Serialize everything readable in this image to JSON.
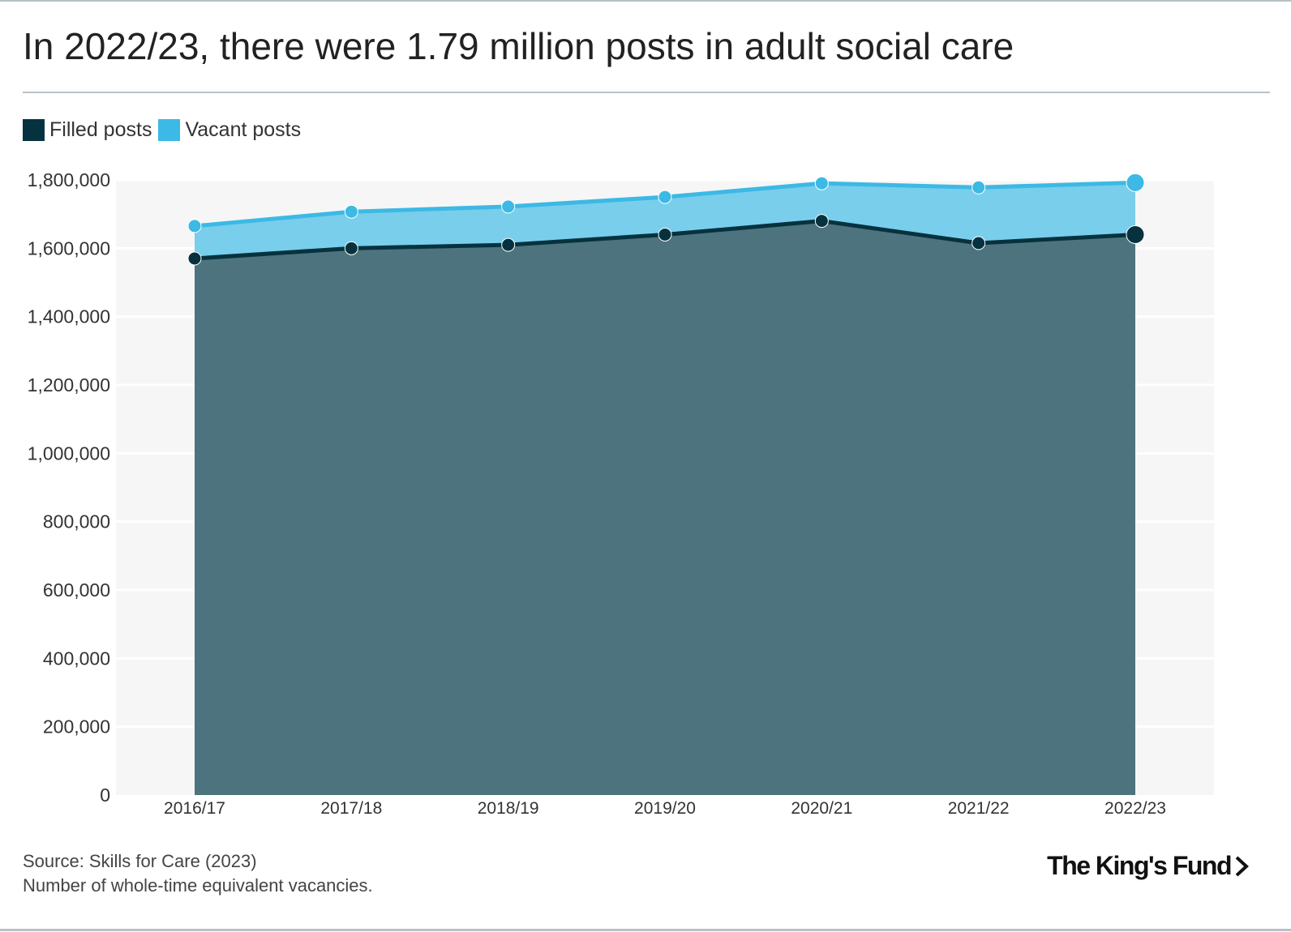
{
  "title": "In 2022/23, there were 1.79 million posts in adult social care",
  "legend": {
    "filled_label": "Filled posts",
    "vacant_label": "Vacant posts"
  },
  "colors": {
    "filled_area": "#4c737e",
    "filled_line": "#06323f",
    "vacant_area": "#79ceec",
    "vacant_line": "#3cb9e4",
    "plot_background": "#f6f6f6",
    "gridline": "#ffffff"
  },
  "chart_data": {
    "type": "area",
    "stacked": true,
    "categories": [
      "2016/17",
      "2017/18",
      "2018/19",
      "2019/20",
      "2020/21",
      "2021/22",
      "2022/23"
    ],
    "series": [
      {
        "name": "Filled posts",
        "values": [
          1570000,
          1600000,
          1610000,
          1640000,
          1680000,
          1615000,
          1640000
        ]
      },
      {
        "name": "Vacant posts",
        "values": [
          95000,
          107000,
          112000,
          110000,
          110000,
          163000,
          152000
        ]
      }
    ],
    "totals": [
      1665000,
      1707000,
      1722000,
      1750000,
      1790000,
      1778000,
      1792000
    ],
    "ylim": [
      0,
      1800000
    ],
    "yticks": [
      0,
      200000,
      400000,
      600000,
      800000,
      1000000,
      1200000,
      1400000,
      1600000,
      1800000
    ],
    "ytick_labels": [
      "0",
      "200,000",
      "400,000",
      "600,000",
      "800,000",
      "1,000,000",
      "1,200,000",
      "1,400,000",
      "1,600,000",
      "1,800,000"
    ],
    "grid": true,
    "legend_position": "top-left"
  },
  "footer": {
    "source": "Source: Skills for Care (2023)",
    "note": "Number of whole-time equivalent vacancies.",
    "logo_text": "The King's Fund"
  }
}
